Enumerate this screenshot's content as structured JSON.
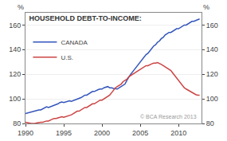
{
  "chart_data": {
    "type": "line",
    "title": "HOUSEHOLD DEBT-TO-INCOME:",
    "ylabel": "%",
    "y2label": "%",
    "annotations": [
      "© BCA Research 2013"
    ],
    "x": [
      1990.0,
      1990.25,
      1990.5,
      1990.75,
      1991.0,
      1991.25,
      1991.5,
      1991.75,
      1992.0,
      1992.25,
      1992.5,
      1992.75,
      1993.0,
      1993.25,
      1993.5,
      1993.75,
      1994.0,
      1994.25,
      1994.5,
      1994.75,
      1995.0,
      1995.25,
      1995.5,
      1995.75,
      1996.0,
      1996.25,
      1996.5,
      1996.75,
      1997.0,
      1997.25,
      1997.5,
      1997.75,
      1998.0,
      1998.25,
      1998.5,
      1998.75,
      1999.0,
      1999.25,
      1999.5,
      1999.75,
      2000.0,
      2000.25,
      2000.5,
      2000.75,
      2001.0,
      2001.25,
      2001.5,
      2001.75,
      2002.0,
      2002.25,
      2002.5,
      2002.75,
      2003.0,
      2003.25,
      2003.5,
      2003.75,
      2004.0,
      2004.25,
      2004.5,
      2004.75,
      2005.0,
      2005.25,
      2005.5,
      2005.75,
      2006.0,
      2006.25,
      2006.5,
      2006.75,
      2007.0,
      2007.25,
      2007.5,
      2007.75,
      2008.0,
      2008.25,
      2008.5,
      2008.75,
      2009.0,
      2009.25,
      2009.5,
      2009.75,
      2010.0,
      2010.25,
      2010.5,
      2010.75,
      2011.0,
      2011.25,
      2011.5,
      2011.75,
      2012.0,
      2012.25,
      2012.5,
      2012.75
    ],
    "series": [
      {
        "name": "CANADA",
        "color": "#3355bb",
        "values": [
          88,
          88.5,
          89,
          89.5,
          89.5,
          90,
          90.5,
          91,
          91,
          92,
          93,
          93.5,
          93,
          93.5,
          94,
          94.5,
          95,
          96,
          97,
          97.5,
          97,
          97.5,
          98,
          98.5,
          98,
          98.5,
          99,
          100,
          100,
          101,
          102,
          103,
          103,
          104,
          105,
          106,
          106,
          107,
          107.5,
          108,
          108,
          109,
          109.5,
          110,
          109,
          109,
          108.5,
          108,
          108,
          109,
          110,
          111,
          112,
          115,
          118,
          120,
          122,
          124,
          126,
          128,
          130,
          132,
          134,
          136,
          137,
          139,
          141,
          143,
          144,
          146,
          147,
          149,
          150,
          152,
          153,
          154,
          154,
          155,
          156,
          157,
          157,
          158,
          159,
          160,
          160,
          161,
          162,
          163,
          163,
          163.5,
          164,
          165
        ]
      },
      {
        "name": "U.S.",
        "color": "#cc4444",
        "values": [
          81,
          80.5,
          80,
          80,
          80,
          80,
          80.5,
          81,
          81,
          81,
          81.5,
          82,
          82,
          83,
          83.5,
          84,
          84,
          84.5,
          85,
          85.5,
          85,
          85.5,
          86,
          86.5,
          87,
          88,
          89,
          90,
          90,
          91,
          92,
          93,
          93,
          94,
          95,
          96,
          96,
          97,
          98,
          99,
          99,
          100,
          101,
          102,
          103,
          105,
          107,
          109,
          110,
          111,
          112,
          114,
          115,
          116,
          118,
          119,
          120,
          121,
          122,
          123,
          124,
          125,
          126,
          127,
          127,
          128,
          128.5,
          129,
          129,
          129.5,
          129,
          128,
          127,
          126,
          125,
          124,
          123,
          121,
          119,
          117,
          115,
          113,
          111,
          109,
          108,
          107,
          106,
          105,
          104,
          103.5,
          103,
          103
        ]
      }
    ],
    "xlim": [
      1990,
      2013
    ],
    "xticks": [
      1990,
      1995,
      2000,
      2005,
      2010
    ],
    "ylim": [
      80,
      170
    ],
    "yticks": [
      80,
      100,
      120,
      140,
      160
    ],
    "y2lim": [
      80,
      170
    ],
    "y2ticks": [
      80,
      100,
      120,
      140,
      160
    ],
    "grid": true,
    "legend": "upper left"
  }
}
